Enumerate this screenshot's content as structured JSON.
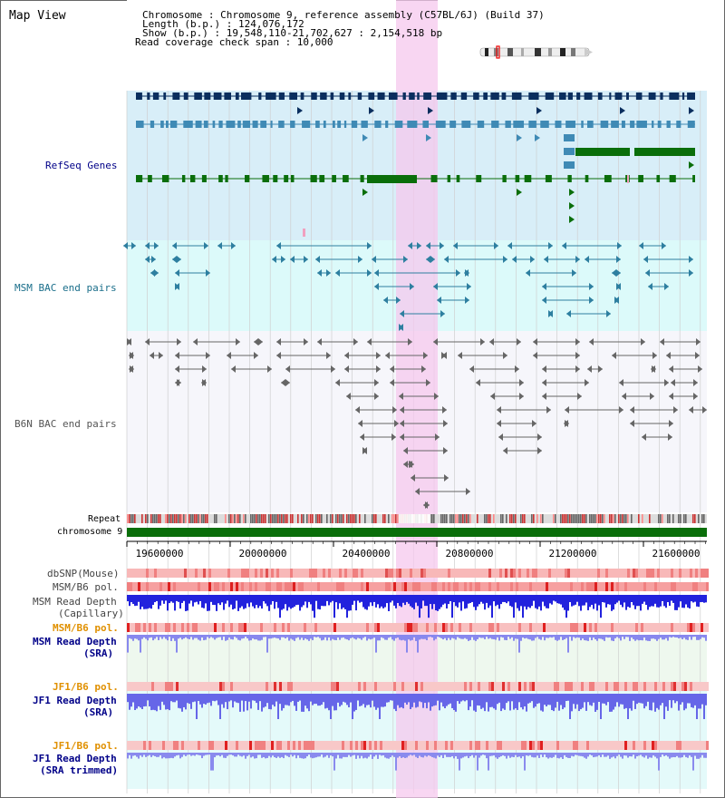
{
  "title": "Map View",
  "info": {
    "chromosome": "Chromosome       : Chromosome 9, reference assembly (C57BL/6J) (Build 37)",
    "length": "Length (b.p.) : 124,076,172",
    "show": "  Show (b.p.) : 19,548,110-21,702,627 : 2,154,518 bp",
    "coverage": "Read coverage check span : 10,000"
  },
  "tracks": {
    "refseq": "RefSeq Genes",
    "msm_bac": "MSM BAC end pairs",
    "b6n_bac": "B6N BAC end pairs",
    "repeat": "Repeat",
    "chromosome": "chromosome 9",
    "dbsnp": "dbSNP(Mouse)",
    "msm_pol1": "MSM/B6 pol.",
    "msm_depth_cap1": "MSM Read Depth",
    "msm_depth_cap2": "(Capillary)",
    "msm_pol2": "MSM/B6 pol.",
    "msm_sra1": "MSM Read Depth",
    "msm_sra2": "(SRA)",
    "jf1_pol1": "JF1/B6 pol.",
    "jf1_sra1": "JF1 Read Depth",
    "jf1_sra2": "(SRA)",
    "jf1_pol2": "JF1/B6 pol.",
    "jf1_trim1": "JF1 Read Depth",
    "jf1_trim2": "(SRA trimmed)"
  },
  "axis": {
    "ticks": [
      "19600000",
      "20000000",
      "20400000",
      "20800000",
      "21200000",
      "21600000"
    ]
  },
  "colors": {
    "highlight": "#f5c8ee",
    "refseq_bg": "#d8eef8",
    "msm_bg": "#dcfafa",
    "b6n_bg": "#f5f5fa",
    "dark_blue": "#0a2e5e",
    "mid_blue": "#3f8ab5",
    "green": "#0a6e0a",
    "bac_teal": "#2e7fa0",
    "bac_gray": "#666666",
    "depth_blue": "#2222dd",
    "depth_light": "#8888ee",
    "orange_label": "#e09000",
    "navy_label": "#000088"
  }
}
